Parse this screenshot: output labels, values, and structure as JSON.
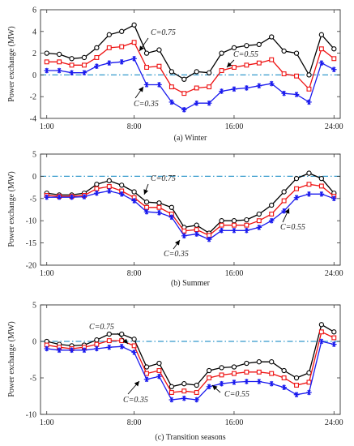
{
  "colors": {
    "c075": "#000000",
    "c055": "#ee1111",
    "c035": "#1a1aee",
    "zero": "#3399cc"
  },
  "chart_data": [
    {
      "type": "line",
      "caption": "(a) Winter",
      "ylabel": "Power exchange (MW)",
      "x": [
        1,
        2,
        3,
        4,
        5,
        6,
        7,
        8,
        9,
        10,
        11,
        12,
        13,
        14,
        15,
        16,
        17,
        18,
        19,
        20,
        21,
        22,
        23,
        24
      ],
      "xtick_labels": [
        "1:00",
        "8:00",
        "16:00",
        "24:00"
      ],
      "xticks": [
        1,
        8,
        16,
        24
      ],
      "ylim": [
        -4,
        6
      ],
      "yticks": [
        -4,
        -2,
        0,
        2,
        4,
        6
      ],
      "ytick_labels": [
        "-4",
        "-2",
        "0",
        "2",
        "4",
        "6"
      ],
      "series": [
        {
          "name": "C=0.75",
          "marker": "circle",
          "color": "#000000",
          "values": [
            2.0,
            1.9,
            1.5,
            1.6,
            2.5,
            3.7,
            4.0,
            4.6,
            2.0,
            2.3,
            0.3,
            -0.4,
            0.3,
            0.2,
            2.0,
            2.5,
            2.7,
            2.8,
            3.5,
            2.2,
            2.0,
            0.0,
            3.7,
            2.4
          ]
        },
        {
          "name": "C=0.55",
          "marker": "square",
          "color": "#ee1111",
          "values": [
            1.2,
            1.2,
            0.9,
            0.9,
            1.6,
            2.5,
            2.6,
            3.0,
            0.7,
            0.8,
            -1.1,
            -1.7,
            -1.2,
            -1.1,
            0.4,
            0.7,
            0.9,
            1.1,
            1.4,
            0.1,
            -0.1,
            -1.3,
            2.4,
            1.5
          ]
        },
        {
          "name": "C=0.35",
          "marker": "asterisk",
          "color": "#1a1aee",
          "values": [
            0.4,
            0.4,
            0.2,
            0.2,
            0.8,
            1.1,
            1.2,
            1.5,
            -0.9,
            -0.9,
            -2.5,
            -3.2,
            -2.6,
            -2.6,
            -1.5,
            -1.3,
            -1.2,
            -1.0,
            -0.8,
            -1.7,
            -1.8,
            -2.5,
            1.1,
            0.5
          ]
        }
      ],
      "reference_line": 0,
      "annotations": [
        {
          "text": "C=0.75",
          "x": 9.8,
          "y": 2.3
        },
        {
          "text": "C=0.55",
          "x": 16.0,
          "y": 0.5
        },
        {
          "text": "C=0.35",
          "x": 9.0,
          "y": -0.9
        }
      ]
    },
    {
      "type": "line",
      "caption": "(b) Summer",
      "ylabel": "Power exchange (MW)",
      "x": [
        1,
        2,
        3,
        4,
        5,
        6,
        7,
        8,
        9,
        10,
        11,
        12,
        13,
        14,
        15,
        16,
        17,
        18,
        19,
        20,
        21,
        22,
        23,
        24
      ],
      "xtick_labels": [
        "1:00",
        "8:00",
        "16:00",
        "24:00"
      ],
      "xticks": [
        1,
        8,
        16,
        24
      ],
      "ylim": [
        -20,
        5
      ],
      "yticks": [
        -20,
        -15,
        -10,
        -5,
        0,
        5
      ],
      "ytick_labels": [
        "-20",
        "-15",
        "-10",
        "-5",
        "0",
        "5"
      ],
      "series": [
        {
          "name": "C=0.75",
          "marker": "circle",
          "color": "#000000",
          "values": [
            -3.8,
            -4.2,
            -4.2,
            -3.8,
            -1.8,
            -1.0,
            -2.0,
            -3.5,
            -5.8,
            -6.0,
            -7.0,
            -11.5,
            -11.0,
            -12.8,
            -10.0,
            -10.0,
            -9.8,
            -8.5,
            -6.5,
            -3.5,
            -0.5,
            0.7,
            -0.5,
            -3.8
          ]
        },
        {
          "name": "C=0.55",
          "marker": "square",
          "color": "#ee1111",
          "values": [
            -4.3,
            -4.5,
            -4.5,
            -4.3,
            -2.8,
            -2.3,
            -3.3,
            -4.8,
            -7.0,
            -7.0,
            -8.5,
            -12.3,
            -12.0,
            -13.3,
            -11.0,
            -11.0,
            -11.0,
            -10.0,
            -8.5,
            -5.5,
            -2.8,
            -1.8,
            -2.2,
            -4.5
          ]
        },
        {
          "name": "C=0.35",
          "marker": "asterisk",
          "color": "#1a1aee",
          "values": [
            -4.7,
            -4.7,
            -4.7,
            -4.6,
            -3.8,
            -3.3,
            -4.0,
            -5.5,
            -8.0,
            -8.2,
            -9.2,
            -13.4,
            -13.0,
            -14.2,
            -12.2,
            -12.2,
            -12.2,
            -11.5,
            -10.0,
            -7.8,
            -4.8,
            -4.0,
            -4.0,
            -5.0
          ]
        }
      ],
      "reference_line": 0,
      "annotations": [
        {
          "text": "C=0.75",
          "x": 9.0,
          "y": -5.5
        },
        {
          "text": "C=0.55",
          "x": 21.5,
          "y": -4.0
        },
        {
          "text": "C=0.35",
          "x": 12.0,
          "y": -13.4
        }
      ]
    },
    {
      "type": "line",
      "caption": "(c) Transition seasons",
      "ylabel": "Power exchange (MW)",
      "x": [
        1,
        2,
        3,
        4,
        5,
        6,
        7,
        8,
        9,
        10,
        11,
        12,
        13,
        14,
        15,
        16,
        17,
        18,
        19,
        20,
        21,
        22,
        23,
        24
      ],
      "xtick_labels": [
        "1:00",
        "8:00",
        "16:00",
        "24:00"
      ],
      "xticks": [
        1,
        8,
        16,
        24
      ],
      "ylim": [
        -10,
        5
      ],
      "yticks": [
        -10,
        -5,
        0,
        5
      ],
      "ytick_labels": [
        "-10",
        "-5",
        "0",
        "5"
      ],
      "series": [
        {
          "name": "C=0.75",
          "marker": "circle",
          "color": "#000000",
          "values": [
            0.0,
            -0.4,
            -0.6,
            -0.5,
            0.2,
            1.0,
            1.0,
            0.3,
            -3.5,
            -3.0,
            -6.2,
            -5.8,
            -6.0,
            -4.0,
            -3.6,
            -3.5,
            -3.0,
            -2.8,
            -2.8,
            -4.0,
            -5.0,
            -4.3,
            2.3,
            1.3
          ]
        },
        {
          "name": "C=0.55",
          "marker": "square",
          "color": "#ee1111",
          "values": [
            -0.5,
            -0.8,
            -1.0,
            -0.8,
            -0.4,
            0.1,
            0.1,
            -0.6,
            -4.4,
            -4.0,
            -7.0,
            -6.8,
            -7.0,
            -5.0,
            -4.6,
            -4.4,
            -4.2,
            -4.2,
            -4.4,
            -5.0,
            -6.0,
            -5.6,
            1.3,
            0.5
          ]
        },
        {
          "name": "C=0.35",
          "marker": "asterisk",
          "color": "#1a1aee",
          "values": [
            -1.0,
            -1.2,
            -1.2,
            -1.2,
            -1.0,
            -0.8,
            -0.7,
            -1.5,
            -5.2,
            -4.8,
            -8.0,
            -7.8,
            -8.0,
            -6.2,
            -5.8,
            -5.6,
            -5.5,
            -5.5,
            -5.8,
            -6.3,
            -7.3,
            -7.0,
            0.0,
            -0.4
          ]
        }
      ],
      "reference_line": 0,
      "annotations": [
        {
          "text": "C=0.75",
          "x": 7.0,
          "y": 1.0
        },
        {
          "text": "C=0.55",
          "x": 16.0,
          "y": -5.6
        },
        {
          "text": "C=0.35",
          "x": 9.0,
          "y": -5.2
        }
      ]
    }
  ]
}
